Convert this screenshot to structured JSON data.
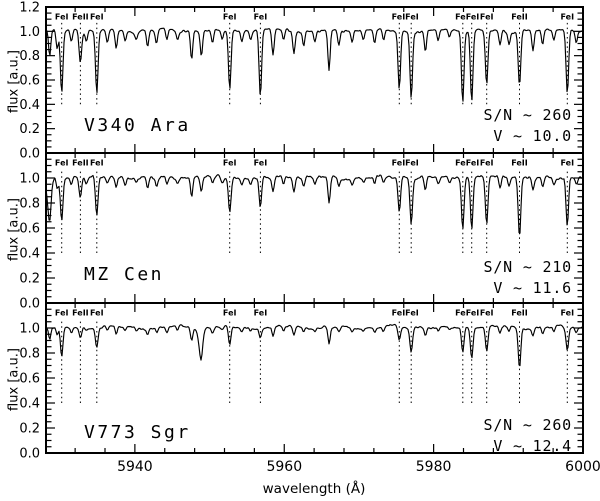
{
  "colors": {
    "background": "#ffffff",
    "axis": "#000000",
    "spectrum": "#000000",
    "marker_line": "#000000",
    "text": "#000000"
  },
  "chart_data": {
    "type": "line",
    "title": "",
    "xlabel": "wavelength (Å)",
    "ylabel": "flux [a.u.]",
    "x_range": [
      5928.1,
      6000.0
    ],
    "y_range": [
      0.0,
      1.2
    ],
    "grid": false,
    "x_major_ticks": [
      5940,
      5960,
      5980,
      6000
    ],
    "x_tick_labels": [
      "5940",
      "5960",
      "5980",
      "6000"
    ],
    "x_minor_step": 4,
    "y_major_step": 0.2,
    "y_minor_step": 0.05,
    "line_markers": {
      "style": "dotted",
      "extent_flux": [
        0.4,
        1.07
      ],
      "wavelengths": [
        5930.2,
        5932.7,
        5934.9,
        5952.7,
        5956.8,
        5975.4,
        5977.0,
        5983.9,
        5985.1,
        5987.1,
        5991.5,
        5997.9
      ],
      "labels": [
        {
          "text": "FeI",
          "wl": 5930.2
        },
        {
          "text": "FeII",
          "wl": 5932.7
        },
        {
          "text": "FeI",
          "wl": 5934.9
        },
        {
          "text": "FeI",
          "wl": 5952.7
        },
        {
          "text": "FeI",
          "wl": 5956.8
        },
        {
          "text": "FeIFeI",
          "wl": 5976.2
        },
        {
          "text": "FeFeI",
          "wl": 5984.5
        },
        {
          "text": "FeI",
          "wl": 5987.1
        },
        {
          "text": "FeII",
          "wl": 5991.5
        },
        {
          "text": "FeI",
          "wl": 5997.9
        }
      ]
    },
    "minor_lines": [
      [
        5928.6,
        0.22
      ],
      [
        5929.6,
        0.15
      ],
      [
        5931.5,
        0.1
      ],
      [
        5933.5,
        0.08
      ],
      [
        5936.3,
        0.1
      ],
      [
        5937.5,
        0.16
      ],
      [
        5938.7,
        0.09
      ],
      [
        5940.2,
        0.07
      ],
      [
        5941.7,
        0.14
      ],
      [
        5942.9,
        0.11
      ],
      [
        5944.3,
        0.09
      ],
      [
        5945.7,
        0.07
      ],
      [
        5947.6,
        0.24
      ],
      [
        5948.9,
        0.2
      ],
      [
        5950.4,
        0.11
      ],
      [
        5951.7,
        0.08
      ],
      [
        5954.3,
        0.09
      ],
      [
        5955.5,
        0.07
      ],
      [
        5958.5,
        0.2
      ],
      [
        5959.9,
        0.09
      ],
      [
        5961.3,
        0.18
      ],
      [
        5962.6,
        0.11
      ],
      [
        5964.1,
        0.09
      ],
      [
        5966.0,
        0.34
      ],
      [
        5967.3,
        0.12
      ],
      [
        5969.1,
        0.09
      ],
      [
        5970.6,
        0.07
      ],
      [
        5972.1,
        0.11
      ],
      [
        5973.3,
        0.09
      ],
      [
        5978.9,
        0.18
      ],
      [
        5980.6,
        0.09
      ],
      [
        5982.1,
        0.07
      ],
      [
        5988.9,
        0.13
      ],
      [
        5990.1,
        0.1
      ],
      [
        5993.3,
        0.16
      ],
      [
        5994.6,
        0.13
      ],
      [
        5996.1,
        0.09
      ],
      [
        5999.1,
        0.1
      ]
    ],
    "panels": [
      {
        "star": "V340 Ara",
        "sn_label": "S/N ~ 260",
        "v_label": "V ~ 10.0",
        "y_tick_labels": [
          "1.2",
          "1.0",
          "0.8",
          "0.6",
          "0.4",
          "0.2",
          "0.0"
        ],
        "marked_line_flux_minima": [
          0.48,
          0.75,
          0.48,
          0.52,
          0.45,
          0.52,
          0.45,
          0.42,
          0.42,
          0.55,
          0.55,
          0.48
        ],
        "minor_line_scale": 1.0,
        "noise_amp": 0.013,
        "seed": 7,
        "extra_lines": []
      },
      {
        "star": "MZ Cen",
        "sn_label": "S/N ~ 210",
        "v_label": "V ~ 11.6",
        "y_tick_labels": [
          "1.0",
          "0.8",
          "0.6",
          "0.4",
          "0.2",
          "0.0"
        ],
        "marked_line_flux_minima": [
          0.65,
          0.85,
          0.68,
          0.72,
          0.75,
          0.72,
          0.62,
          0.6,
          0.58,
          0.62,
          0.52,
          0.62
        ],
        "minor_line_scale": 0.62,
        "noise_amp": 0.016,
        "seed": 23,
        "extra_lines": [
          [
            5928.5,
            0.25
          ]
        ]
      },
      {
        "star": "V773 Sgr",
        "sn_label": "S/N ~ 260",
        "v_label": "V ~ 12.4",
        "y_tick_labels": [
          "1.0",
          "0.8",
          "0.6",
          "0.4",
          "0.2",
          "0.0"
        ],
        "marked_line_flux_minima": [
          0.76,
          0.92,
          0.84,
          0.85,
          0.93,
          0.88,
          0.8,
          0.8,
          0.75,
          0.8,
          0.68,
          0.82
        ],
        "minor_line_scale": 0.38,
        "noise_amp": 0.013,
        "seed": 41,
        "extra_lines": [
          [
            5948.8,
            0.2
          ]
        ]
      }
    ]
  }
}
